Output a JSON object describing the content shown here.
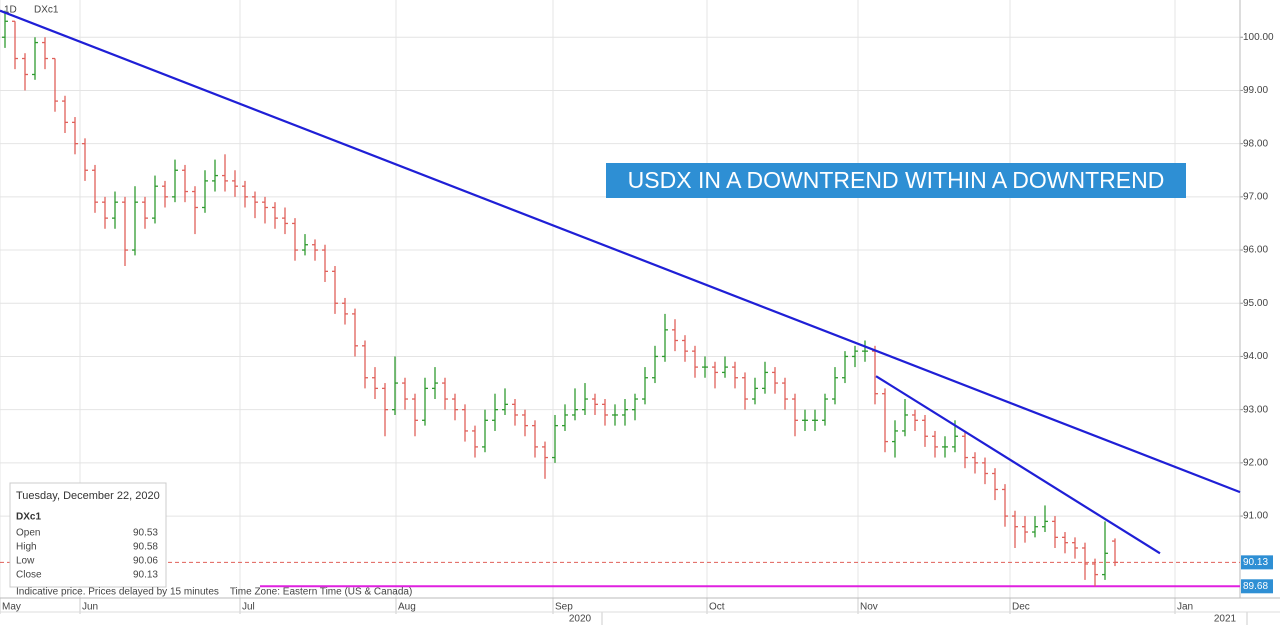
{
  "chart_data": {
    "type": "ohlc",
    "symbol": "DXc1",
    "interval": "1D",
    "annotation": "USDX IN A DOWNTREND WITHIN A DOWNTREND",
    "up_color": "#2f9a2f",
    "down_color": "#e0605a",
    "bars": [
      [
        100.0,
        100.5,
        99.8,
        100.3
      ],
      [
        100.3,
        100.3,
        99.4,
        99.6
      ],
      [
        99.6,
        99.7,
        99.0,
        99.3
      ],
      [
        99.3,
        100.0,
        99.2,
        99.9
      ],
      [
        99.9,
        100.0,
        99.4,
        99.6
      ],
      [
        99.6,
        99.6,
        98.6,
        98.8
      ],
      [
        98.8,
        98.9,
        98.2,
        98.4
      ],
      [
        98.4,
        98.5,
        97.8,
        98.0
      ],
      [
        98.0,
        98.1,
        97.3,
        97.5
      ],
      [
        97.5,
        97.6,
        96.7,
        96.9
      ],
      [
        96.9,
        97.0,
        96.4,
        96.6
      ],
      [
        96.6,
        97.1,
        96.4,
        96.9
      ],
      [
        96.9,
        97.0,
        95.7,
        96.0
      ],
      [
        96.0,
        97.2,
        95.9,
        96.9
      ],
      [
        96.9,
        97.0,
        96.4,
        96.6
      ],
      [
        96.6,
        97.4,
        96.5,
        97.2
      ],
      [
        97.2,
        97.3,
        96.8,
        97.0
      ],
      [
        97.0,
        97.7,
        96.9,
        97.5
      ],
      [
        97.5,
        97.6,
        96.9,
        97.1
      ],
      [
        97.1,
        97.2,
        96.3,
        96.8
      ],
      [
        96.8,
        97.5,
        96.7,
        97.3
      ],
      [
        97.3,
        97.7,
        97.1,
        97.4
      ],
      [
        97.4,
        97.8,
        97.1,
        97.3
      ],
      [
        97.3,
        97.5,
        97.0,
        97.2
      ],
      [
        97.2,
        97.3,
        96.8,
        97.0
      ],
      [
        97.0,
        97.1,
        96.6,
        96.9
      ],
      [
        96.9,
        97.0,
        96.5,
        96.8
      ],
      [
        96.8,
        96.9,
        96.4,
        96.6
      ],
      [
        96.6,
        96.8,
        96.3,
        96.5
      ],
      [
        96.5,
        96.6,
        95.8,
        96.0
      ],
      [
        96.0,
        96.3,
        95.9,
        96.1
      ],
      [
        96.1,
        96.2,
        95.8,
        96.0
      ],
      [
        96.0,
        96.1,
        95.4,
        95.6
      ],
      [
        95.6,
        95.7,
        94.8,
        95.0
      ],
      [
        95.0,
        95.1,
        94.6,
        94.8
      ],
      [
        94.8,
        94.9,
        94.0,
        94.2
      ],
      [
        94.2,
        94.3,
        93.4,
        93.6
      ],
      [
        93.6,
        93.8,
        93.2,
        93.4
      ],
      [
        93.4,
        93.5,
        92.5,
        93.0
      ],
      [
        93.0,
        94.0,
        92.9,
        93.5
      ],
      [
        93.5,
        93.6,
        93.0,
        93.2
      ],
      [
        93.2,
        93.3,
        92.5,
        92.8
      ],
      [
        92.8,
        93.6,
        92.7,
        93.4
      ],
      [
        93.4,
        93.8,
        93.2,
        93.5
      ],
      [
        93.5,
        93.6,
        93.0,
        93.2
      ],
      [
        93.2,
        93.3,
        92.8,
        93.0
      ],
      [
        93.0,
        93.1,
        92.4,
        92.6
      ],
      [
        92.6,
        92.7,
        92.1,
        92.3
      ],
      [
        92.3,
        93.0,
        92.2,
        92.8
      ],
      [
        92.8,
        93.3,
        92.6,
        93.0
      ],
      [
        93.0,
        93.4,
        92.9,
        93.1
      ],
      [
        93.1,
        93.2,
        92.7,
        92.9
      ],
      [
        92.9,
        93.0,
        92.5,
        92.7
      ],
      [
        92.7,
        92.8,
        92.1,
        92.3
      ],
      [
        92.3,
        92.4,
        91.7,
        92.1
      ],
      [
        92.1,
        92.9,
        92.0,
        92.7
      ],
      [
        92.7,
        93.1,
        92.6,
        92.9
      ],
      [
        92.9,
        93.4,
        92.8,
        93.0
      ],
      [
        93.0,
        93.5,
        92.9,
        93.2
      ],
      [
        93.2,
        93.3,
        92.9,
        93.1
      ],
      [
        93.1,
        93.2,
        92.7,
        92.9
      ],
      [
        92.9,
        93.1,
        92.7,
        92.9
      ],
      [
        92.9,
        93.2,
        92.7,
        93.0
      ],
      [
        93.0,
        93.3,
        92.8,
        93.2
      ],
      [
        93.2,
        93.8,
        93.1,
        93.6
      ],
      [
        93.6,
        94.2,
        93.5,
        94.0
      ],
      [
        94.0,
        94.8,
        93.9,
        94.5
      ],
      [
        94.5,
        94.7,
        94.1,
        94.3
      ],
      [
        94.3,
        94.4,
        93.9,
        94.1
      ],
      [
        94.1,
        94.2,
        93.6,
        93.8
      ],
      [
        93.8,
        94.0,
        93.6,
        93.8
      ],
      [
        93.8,
        93.9,
        93.4,
        93.7
      ],
      [
        93.7,
        94.0,
        93.6,
        93.8
      ],
      [
        93.8,
        93.9,
        93.4,
        93.6
      ],
      [
        93.6,
        93.7,
        93.0,
        93.2
      ],
      [
        93.2,
        93.6,
        93.1,
        93.4
      ],
      [
        93.4,
        93.9,
        93.3,
        93.7
      ],
      [
        93.7,
        93.8,
        93.3,
        93.5
      ],
      [
        93.5,
        93.6,
        93.0,
        93.2
      ],
      [
        93.2,
        93.3,
        92.5,
        92.8
      ],
      [
        92.8,
        93.0,
        92.6,
        92.8
      ],
      [
        92.8,
        93.0,
        92.6,
        92.8
      ],
      [
        92.8,
        93.3,
        92.7,
        93.2
      ],
      [
        93.2,
        93.8,
        93.1,
        93.6
      ],
      [
        93.6,
        94.1,
        93.5,
        94.0
      ],
      [
        94.0,
        94.2,
        93.8,
        94.1
      ],
      [
        94.1,
        94.3,
        93.9,
        94.1
      ],
      [
        94.1,
        94.2,
        93.1,
        93.3
      ],
      [
        93.3,
        93.4,
        92.2,
        92.4
      ],
      [
        92.4,
        92.8,
        92.1,
        92.6
      ],
      [
        92.6,
        93.2,
        92.5,
        92.9
      ],
      [
        92.9,
        93.0,
        92.6,
        92.8
      ],
      [
        92.8,
        92.9,
        92.3,
        92.5
      ],
      [
        92.5,
        92.6,
        92.1,
        92.3
      ],
      [
        92.3,
        92.5,
        92.1,
        92.3
      ],
      [
        92.3,
        92.8,
        92.2,
        92.5
      ],
      [
        92.5,
        92.6,
        91.9,
        92.1
      ],
      [
        92.1,
        92.2,
        91.8,
        92.0
      ],
      [
        92.0,
        92.1,
        91.6,
        91.8
      ],
      [
        91.8,
        91.9,
        91.3,
        91.5
      ],
      [
        91.5,
        91.6,
        90.8,
        91.0
      ],
      [
        91.0,
        91.1,
        90.4,
        90.8
      ],
      [
        90.8,
        91.0,
        90.5,
        90.7
      ],
      [
        90.7,
        91.0,
        90.6,
        90.8
      ],
      [
        90.8,
        91.2,
        90.7,
        90.9
      ],
      [
        90.9,
        91.0,
        90.4,
        90.6
      ],
      [
        90.6,
        90.7,
        90.3,
        90.5
      ],
      [
        90.5,
        90.6,
        90.2,
        90.4
      ],
      [
        90.4,
        90.5,
        89.8,
        90.1
      ],
      [
        90.1,
        90.2,
        89.68,
        89.9
      ],
      [
        89.9,
        90.9,
        89.8,
        90.3
      ],
      [
        90.53,
        90.58,
        90.06,
        90.13
      ]
    ],
    "xlim": [
      -0.5,
      123.5
    ],
    "xticks": [
      {
        "value": -0.5,
        "label": "May"
      },
      {
        "value": 7.5,
        "label": "Jun"
      },
      {
        "value": 23.5,
        "label": "Jul"
      },
      {
        "value": 39.1,
        "label": "Aug"
      },
      {
        "value": 54.8,
        "label": "Sep"
      },
      {
        "value": 70.2,
        "label": "Oct"
      },
      {
        "value": 85.3,
        "label": "Nov"
      },
      {
        "value": 100.5,
        "label": "Dec"
      },
      {
        "value": 117,
        "label": "Jan"
      }
    ],
    "year_ticks": [
      {
        "value": 57.5,
        "label": "2020"
      },
      {
        "value": 122,
        "label": "2021"
      }
    ],
    "ylim": [
      89.46,
      100.7
    ],
    "yticks": [
      {
        "value": 91,
        "label": "91.00"
      },
      {
        "value": 92,
        "label": "92.00"
      },
      {
        "value": 93,
        "label": "93.00"
      },
      {
        "value": 94,
        "label": "94.00"
      },
      {
        "value": 95,
        "label": "95.00"
      },
      {
        "value": 96,
        "label": "96.00"
      },
      {
        "value": 97,
        "label": "97.00"
      },
      {
        "value": 98,
        "label": "98.00"
      },
      {
        "value": 99,
        "label": "99.00"
      },
      {
        "value": 100,
        "label": "100.00"
      }
    ],
    "grid": true,
    "trendlines": [
      {
        "x": [
          -0.5,
          123.5
        ],
        "y": [
          100.5,
          91.45
        ],
        "color": "#1f1fd6"
      },
      {
        "x": [
          87.1,
          115.5
        ],
        "y": [
          93.63,
          90.3
        ],
        "color": "#1f1fd6"
      }
    ],
    "levels": [
      {
        "value": 90.13,
        "label": "90.13",
        "color": "#e0605a",
        "line_color": "#e0605a",
        "tag_color": "#2e8fd4",
        "from": -0.5
      },
      {
        "value": 89.68,
        "label": "89.68",
        "color": "#e020e0",
        "line_color": "#e020e0",
        "tag_color": "#2e8fd4",
        "from": 25.5
      }
    ],
    "tooltip": {
      "date": "Tuesday, December 22, 2020",
      "fields": [
        "Open",
        "High",
        "Low",
        "Close"
      ]
    },
    "footer": "Indicative price. Prices delayed by 15 minutes    Time Zone: Eastern Time (US & Canada)"
  }
}
